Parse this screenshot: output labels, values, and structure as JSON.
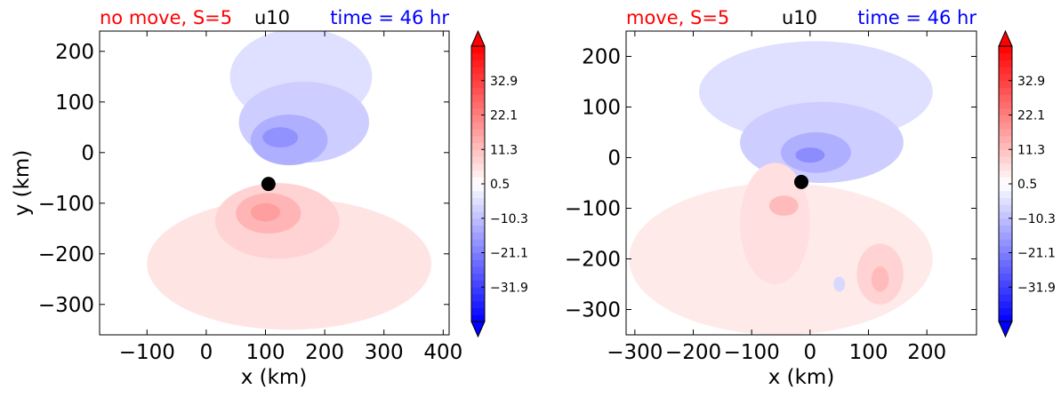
{
  "chart_data": [
    {
      "type": "heatmap",
      "title_left": "no move, S=5",
      "title_center": "u10",
      "title_right": "time = 46 hr",
      "title_left_color": "#ff0000",
      "title_right_color": "#0000ff",
      "xlabel": "x (km)",
      "ylabel": "y (km)",
      "xlim": [
        -180,
        410
      ],
      "ylim": [
        -360,
        240
      ],
      "xticks": [
        -100,
        0,
        100,
        200,
        300,
        400
      ],
      "xtick_labels": [
        "−100",
        "0",
        "100",
        "200",
        "300",
        "400"
      ],
      "yticks": [
        200,
        100,
        0,
        -100,
        -200,
        -300
      ],
      "ytick_labels": [
        "200",
        "100",
        "0",
        "−100",
        "−200",
        "−300"
      ],
      "center_marker": {
        "x": 105,
        "y": -62
      },
      "features": [
        {
          "x": 160,
          "y": 150,
          "rx": 120,
          "ry": 95,
          "value": -5
        },
        {
          "x": 165,
          "y": 60,
          "rx": 110,
          "ry": 80,
          "value": -8
        },
        {
          "x": 140,
          "y": 25,
          "rx": 65,
          "ry": 50,
          "value": -13
        },
        {
          "x": 125,
          "y": 30,
          "rx": 30,
          "ry": 20,
          "value": -18
        },
        {
          "x": 140,
          "y": -220,
          "rx": 240,
          "ry": 130,
          "value": 5
        },
        {
          "x": 120,
          "y": -135,
          "rx": 105,
          "ry": 75,
          "value": 8
        },
        {
          "x": 105,
          "y": -120,
          "rx": 55,
          "ry": 40,
          "value": 13
        },
        {
          "x": 100,
          "y": -118,
          "rx": 25,
          "ry": 18,
          "value": 17
        }
      ],
      "colorbar": {
        "tick_labels": [
          "32.9",
          "22.1",
          "11.3",
          "0.5",
          "−10.3",
          "−21.1",
          "−31.9"
        ],
        "tick_values": [
          32.9,
          22.1,
          11.3,
          0.5,
          -10.3,
          -21.1,
          -31.9
        ],
        "vmin": -42.7,
        "vmax": 43.7,
        "extend": "both"
      }
    },
    {
      "type": "heatmap",
      "title_left": "move, S=5",
      "title_center": "u10",
      "title_right": "time = 46 hr",
      "title_left_color": "#ff0000",
      "title_right_color": "#0000ff",
      "xlabel": "x (km)",
      "ylabel": "",
      "xlim": [
        -315,
        285
      ],
      "ylim": [
        -350,
        250
      ],
      "xticks": [
        -300,
        -200,
        -100,
        0,
        100,
        200
      ],
      "xtick_labels": [
        "−300",
        "−200",
        "−100",
        "0",
        "100",
        "200"
      ],
      "yticks": [
        200,
        100,
        0,
        -100,
        -200,
        -300
      ],
      "ytick_labels": [
        "200",
        "100",
        "0",
        "−100",
        "−200",
        "−300"
      ],
      "center_marker": {
        "x": -15,
        "y": -48
      },
      "features": [
        {
          "x": 10,
          "y": 130,
          "rx": 200,
          "ry": 100,
          "value": -5
        },
        {
          "x": 20,
          "y": 30,
          "rx": 140,
          "ry": 80,
          "value": -8
        },
        {
          "x": 10,
          "y": 10,
          "rx": 60,
          "ry": 40,
          "value": -13
        },
        {
          "x": 0,
          "y": 5,
          "rx": 25,
          "ry": 15,
          "value": -19
        },
        {
          "x": -50,
          "y": -200,
          "rx": 260,
          "ry": 150,
          "value": 4
        },
        {
          "x": -60,
          "y": -130,
          "rx": 60,
          "ry": 120,
          "value": 6
        },
        {
          "x": -45,
          "y": -95,
          "rx": 25,
          "ry": 20,
          "value": 12
        },
        {
          "x": 120,
          "y": -230,
          "rx": 40,
          "ry": 60,
          "value": 8
        },
        {
          "x": 120,
          "y": -240,
          "rx": 15,
          "ry": 25,
          "value": 12
        },
        {
          "x": 50,
          "y": -250,
          "rx": 10,
          "ry": 15,
          "value": -6
        }
      ],
      "colorbar": {
        "tick_labels": [
          "32.9",
          "22.1",
          "11.3",
          "0.5",
          "−10.3",
          "−21.1",
          "−31.9"
        ],
        "tick_values": [
          32.9,
          22.1,
          11.3,
          0.5,
          -10.3,
          -21.1,
          -31.9
        ],
        "vmin": -42.7,
        "vmax": 43.7,
        "extend": "both"
      }
    }
  ]
}
